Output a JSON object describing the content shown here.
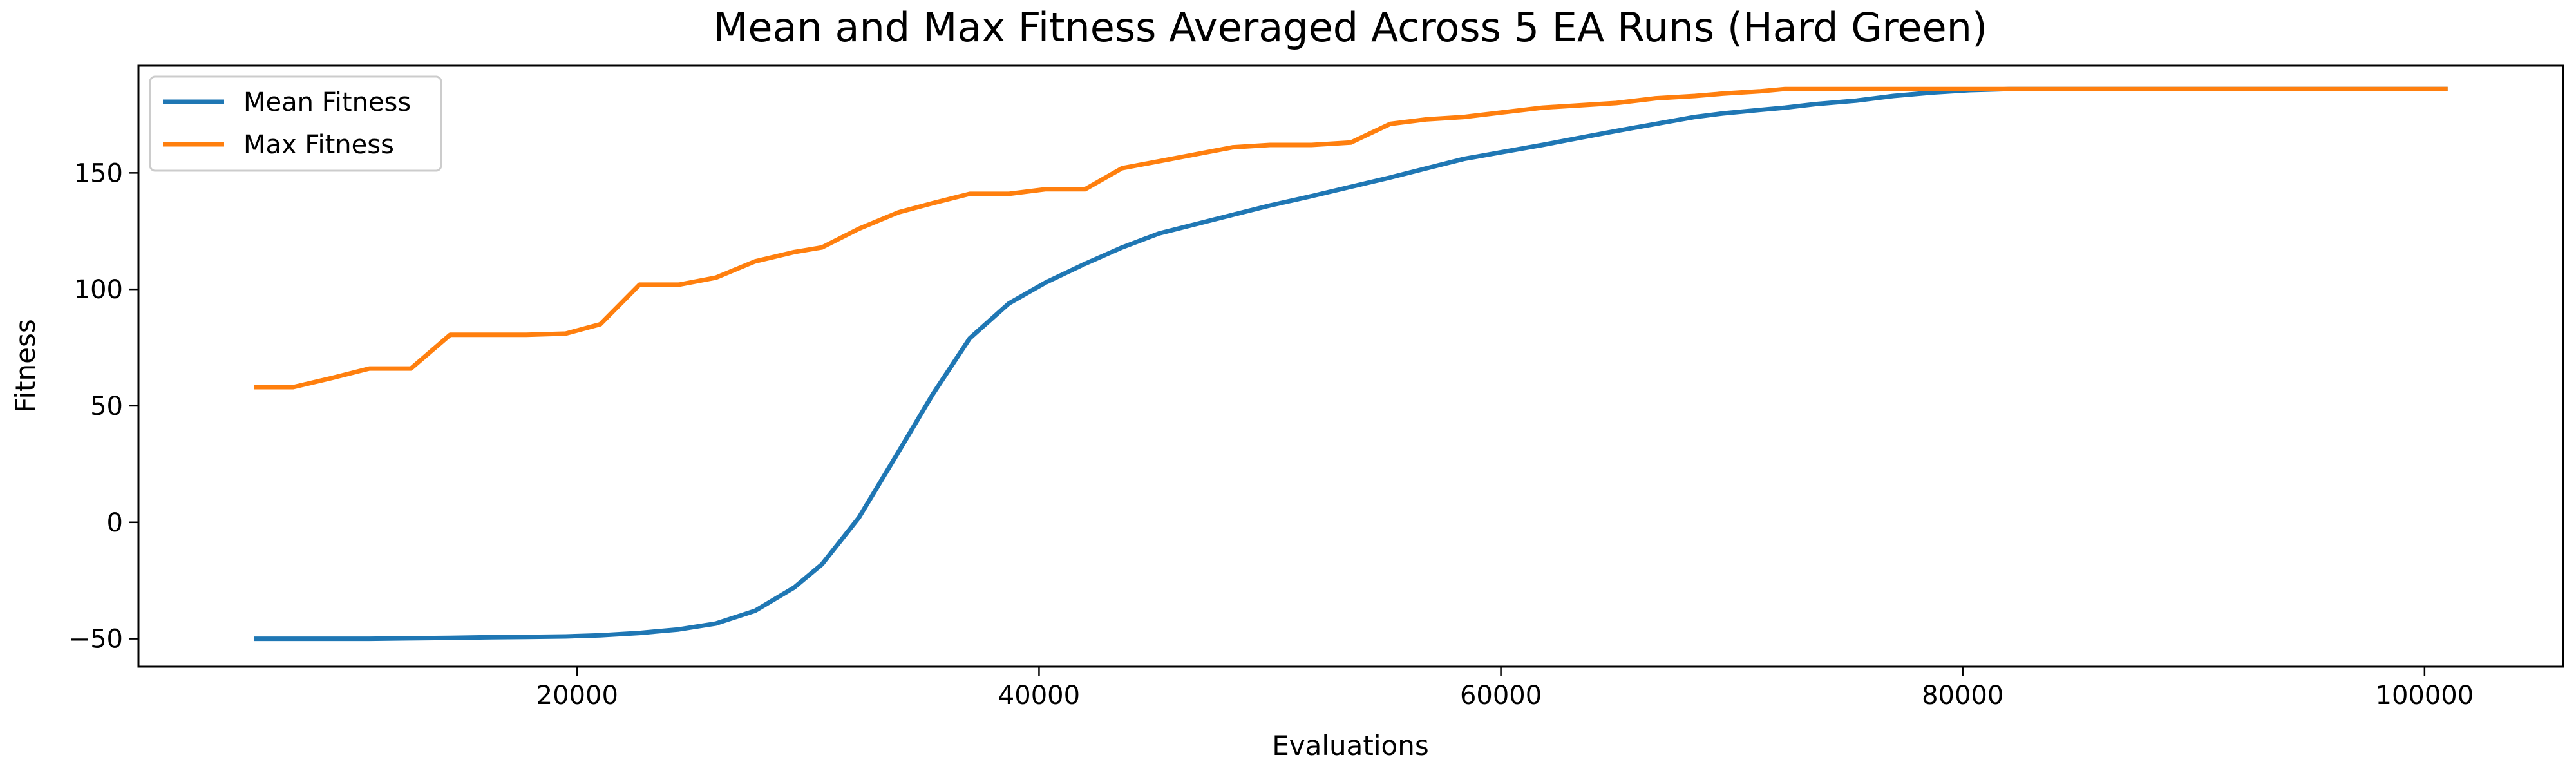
{
  "chart_data": {
    "type": "line",
    "title": "Mean and Max Fitness Averaged Across 5 EA Runs (Hard Green)",
    "xlabel": "Evaluations",
    "ylabel": "Fitness",
    "xlim": [
      1000,
      106000
    ],
    "ylim": [
      -62,
      196
    ],
    "xticks": [
      20000,
      40000,
      60000,
      80000,
      100000
    ],
    "xtick_labels": [
      "20000",
      "40000",
      "60000",
      "80000",
      "100000"
    ],
    "yticks": [
      -50,
      0,
      50,
      100,
      150
    ],
    "ytick_labels": [
      "−50",
      "0",
      "50",
      "100",
      "150"
    ],
    "grid": false,
    "legend_position": "top-left",
    "x": [
      6000,
      7700,
      9400,
      11000,
      12800,
      14500,
      16000,
      17800,
      19500,
      21000,
      22700,
      24400,
      26000,
      27700,
      29400,
      30600,
      32200,
      33900,
      35400,
      37000,
      38700,
      40300,
      42000,
      43600,
      45200,
      46800,
      48400,
      50000,
      51800,
      53500,
      55200,
      56800,
      58400,
      60100,
      61800,
      63400,
      65000,
      66700,
      68400,
      69600,
      71200,
      72300,
      73600,
      75400,
      77000,
      78700,
      80300,
      82000,
      84000,
      86000,
      88000,
      90000,
      92000,
      94000,
      96000,
      98000,
      101000
    ],
    "series": [
      {
        "name": "Mean Fitness",
        "color": "#1f77b4",
        "values": [
          -50,
          -50,
          -50,
          -50,
          -49.8,
          -49.6,
          -49.4,
          -49.2,
          -49,
          -48.5,
          -47.5,
          -46,
          -43.5,
          -38,
          -28,
          -18,
          2,
          30,
          55,
          79,
          94,
          103,
          111,
          118,
          124,
          128,
          132,
          136,
          140,
          144,
          148,
          152,
          156,
          159,
          162,
          165,
          168,
          171,
          174,
          175.5,
          177,
          178,
          179.5,
          181,
          183,
          184.5,
          185.5,
          186,
          186,
          186,
          186,
          186,
          186,
          186,
          186,
          186,
          186
        ]
      },
      {
        "name": "Max Fitness",
        "color": "#ff7f0e",
        "values": [
          58,
          58,
          62,
          66,
          66,
          80.5,
          80.5,
          80.5,
          81,
          85,
          102,
          102,
          105,
          112,
          116,
          118,
          126,
          133,
          137,
          141,
          141,
          143,
          143,
          152,
          155,
          158,
          161,
          162,
          162,
          163,
          171,
          173,
          174,
          176,
          178,
          179,
          180,
          182,
          183,
          184,
          185,
          186,
          186,
          186,
          186,
          186,
          186,
          186,
          186,
          186,
          186,
          186,
          186,
          186,
          186,
          186,
          186
        ]
      }
    ]
  }
}
